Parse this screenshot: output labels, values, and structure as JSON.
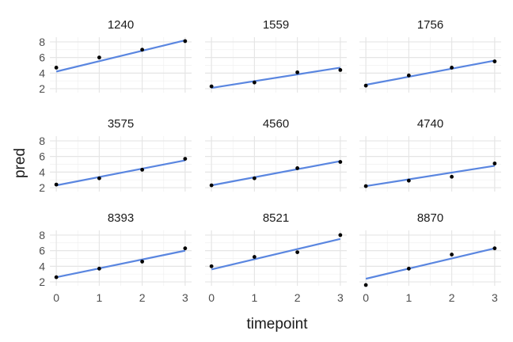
{
  "chart_data": {
    "type": "scatter",
    "xlabel": "timepoint",
    "ylabel": "pred",
    "x_ticks": [
      0,
      1,
      2,
      3
    ],
    "y_ticks": [
      2,
      4,
      6,
      8
    ],
    "xlim": [
      -0.15,
      3.15
    ],
    "ylim": [
      1.5,
      8.6
    ],
    "grid": true,
    "colors": {
      "line": "#5a86e0",
      "points": "#000000"
    },
    "panels": [
      {
        "title": "1240",
        "points": [
          [
            0,
            4.7
          ],
          [
            1,
            6.0
          ],
          [
            2,
            7.0
          ],
          [
            3,
            8.1
          ]
        ],
        "fit": [
          4.2,
          8.2
        ]
      },
      {
        "title": "1559",
        "points": [
          [
            0,
            2.3
          ],
          [
            1,
            2.8
          ],
          [
            2,
            4.1
          ],
          [
            3,
            4.4
          ]
        ],
        "fit": [
          2.1,
          4.7
        ]
      },
      {
        "title": "1756",
        "points": [
          [
            0,
            2.4
          ],
          [
            1,
            3.7
          ],
          [
            2,
            4.7
          ],
          [
            3,
            5.5
          ]
        ],
        "fit": [
          2.5,
          5.6
        ]
      },
      {
        "title": "3575",
        "points": [
          [
            0,
            2.4
          ],
          [
            1,
            3.2
          ],
          [
            2,
            4.3
          ],
          [
            3,
            5.7
          ]
        ],
        "fit": [
          2.3,
          5.5
        ]
      },
      {
        "title": "4560",
        "points": [
          [
            0,
            2.3
          ],
          [
            1,
            3.2
          ],
          [
            2,
            4.5
          ],
          [
            3,
            5.3
          ]
        ],
        "fit": [
          2.3,
          5.4
        ]
      },
      {
        "title": "4740",
        "points": [
          [
            0,
            2.2
          ],
          [
            1,
            2.9
          ],
          [
            2,
            3.4
          ],
          [
            3,
            5.1
          ]
        ],
        "fit": [
          2.2,
          4.8
        ]
      },
      {
        "title": "8393",
        "points": [
          [
            0,
            2.6
          ],
          [
            1,
            3.7
          ],
          [
            2,
            4.6
          ],
          [
            3,
            6.3
          ]
        ],
        "fit": [
          2.6,
          6.0
        ]
      },
      {
        "title": "8521",
        "points": [
          [
            0,
            4.0
          ],
          [
            1,
            5.2
          ],
          [
            2,
            5.8
          ],
          [
            3,
            8.0
          ]
        ],
        "fit": [
          3.6,
          7.5
        ]
      },
      {
        "title": "8870",
        "points": [
          [
            0,
            1.6
          ],
          [
            1,
            3.7
          ],
          [
            2,
            5.5
          ],
          [
            3,
            6.3
          ]
        ],
        "fit": [
          2.4,
          6.3
        ]
      }
    ]
  }
}
